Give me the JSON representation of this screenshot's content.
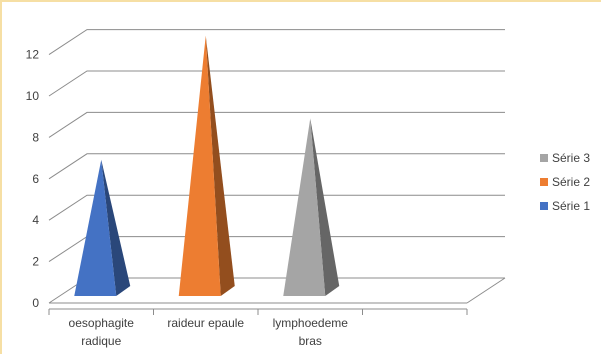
{
  "chart_data": {
    "type": "bar",
    "style": "3d-pyramid",
    "categories": [
      {
        "id": "c1",
        "lines": [
          "oesophagite",
          "radique"
        ]
      },
      {
        "id": "c2",
        "lines": [
          "raideur epaule"
        ]
      },
      {
        "id": "c3",
        "lines": [
          "lymphoedeme",
          "bras"
        ]
      },
      {
        "id": "c4",
        "lines": [
          ""
        ]
      }
    ],
    "series": [
      {
        "name": "Série 1",
        "color": "#4472c4",
        "values": [
          6,
          0,
          0,
          0
        ]
      },
      {
        "name": "Série 2",
        "color": "#ed7d31",
        "values": [
          0,
          12,
          0,
          0
        ]
      },
      {
        "name": "Série 3",
        "color": "#a5a5a5",
        "values": [
          0,
          0,
          8,
          0
        ]
      }
    ],
    "yticks": [
      "0",
      "2",
      "4",
      "6",
      "8",
      "10",
      "12"
    ],
    "ylim": [
      0,
      12
    ],
    "grid": true,
    "legend_position": "right"
  }
}
